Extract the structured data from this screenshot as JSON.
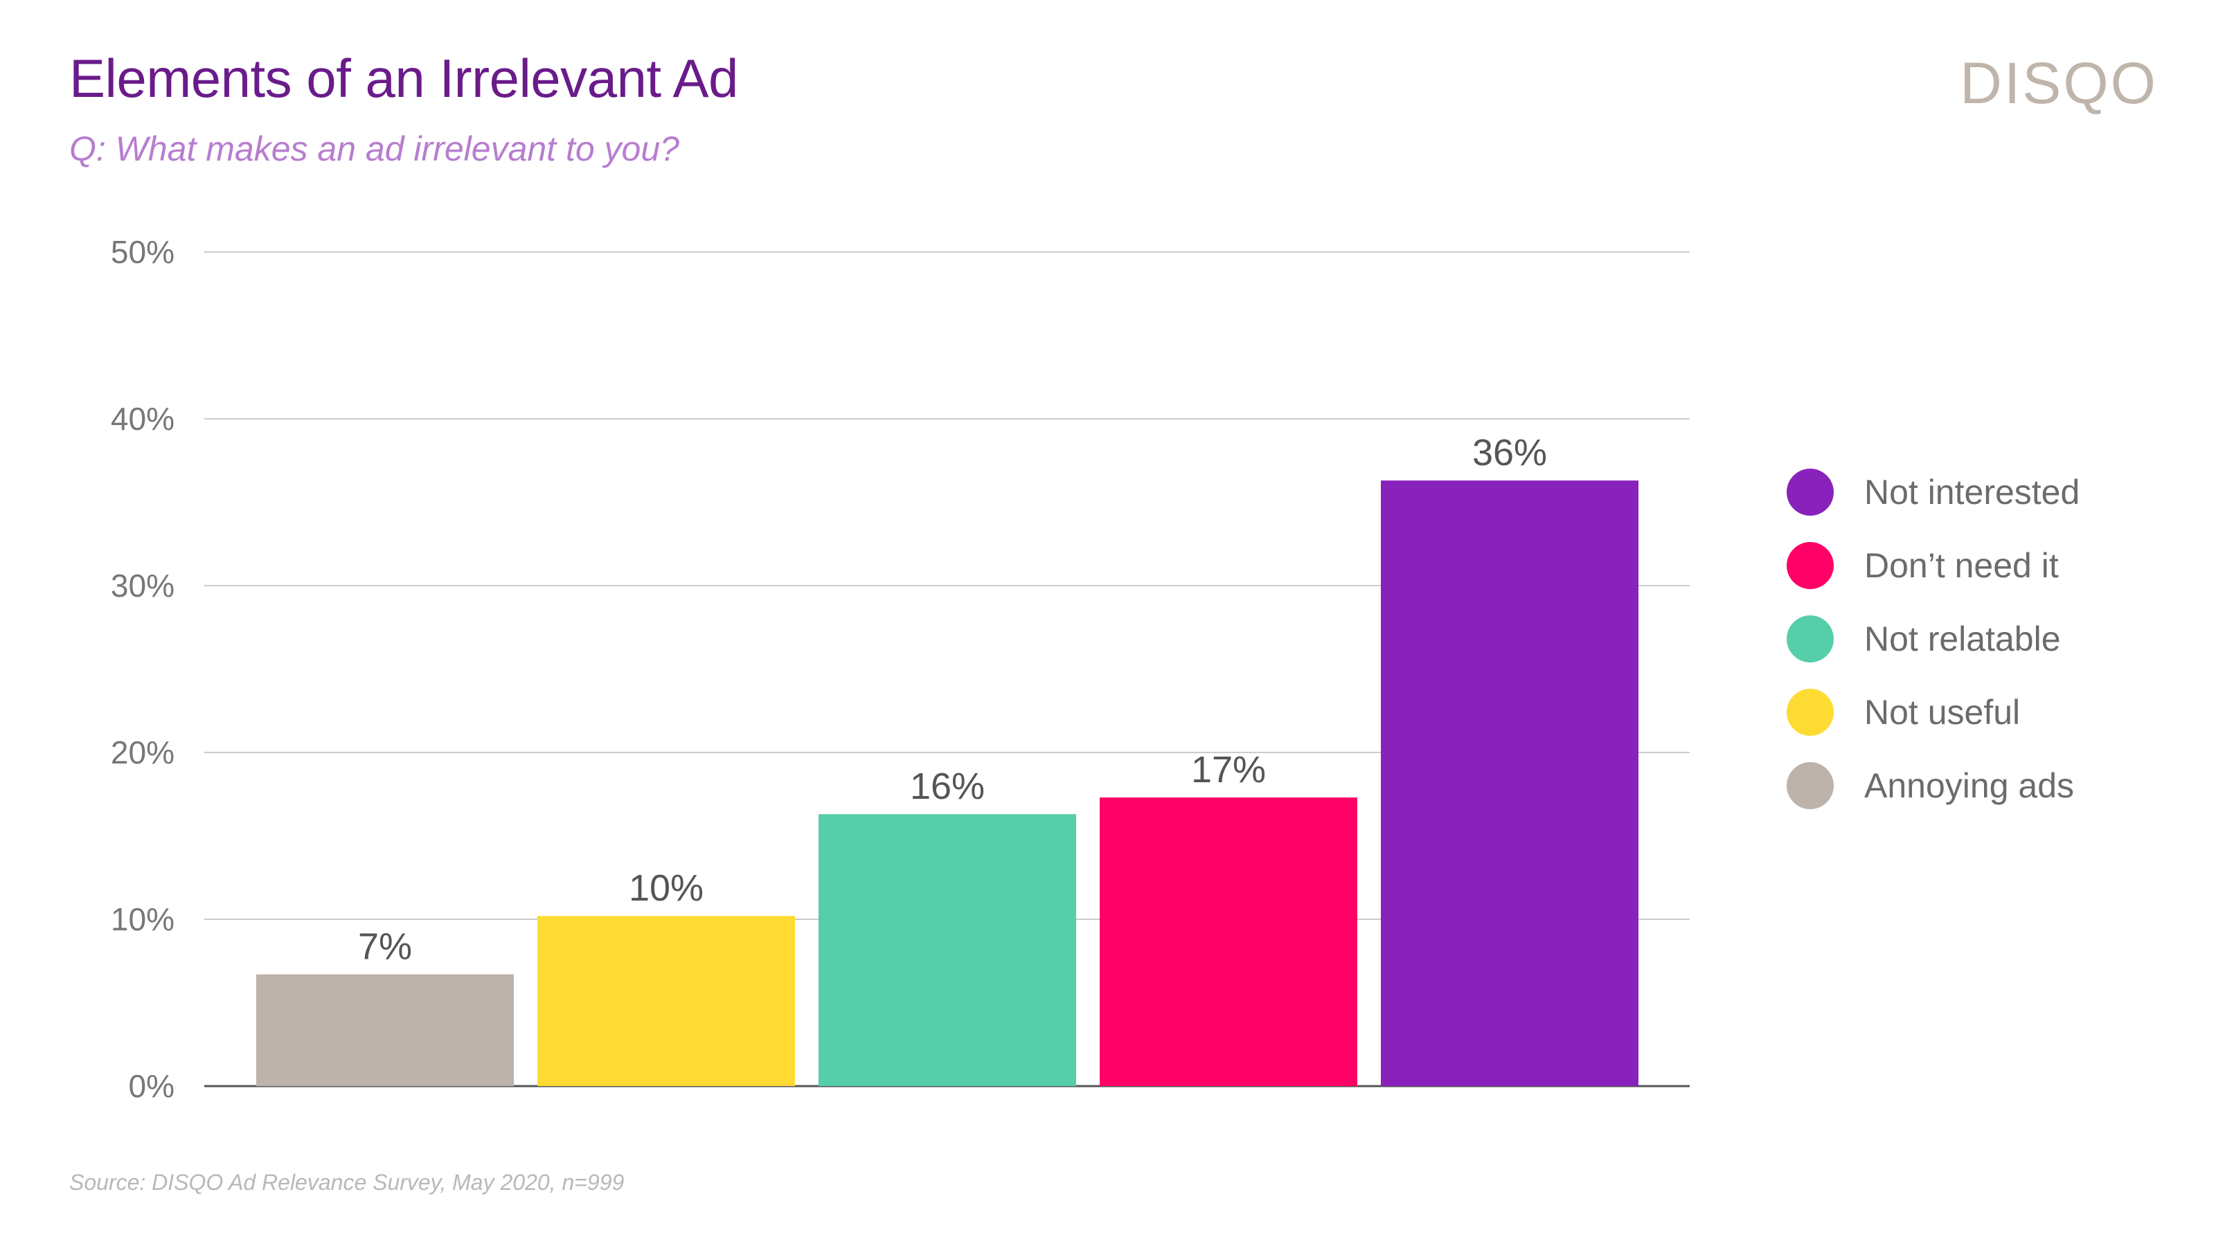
{
  "header": {
    "title": "Elements of an Irrelevant Ad",
    "subtitle": "Q: What makes an ad irrelevant to you?",
    "logo": "DISQO"
  },
  "footer": {
    "source": "Source: DISQO Ad Relevance Survey, May 2020, n=999"
  },
  "chart_data": {
    "type": "bar",
    "title": "Elements of an Irrelevant Ad",
    "xlabel": "",
    "ylabel": "",
    "ylim": [
      0,
      50
    ],
    "yticks": [
      0,
      10,
      20,
      30,
      40,
      50
    ],
    "ytick_labels": [
      "0%",
      "10%",
      "20%",
      "30%",
      "40%",
      "50%"
    ],
    "grid": true,
    "legend_position": "right",
    "categories": [
      "Annoying ads",
      "Not useful",
      "Not relatable",
      "Don’t need it",
      "Not interested"
    ],
    "values": [
      6.7,
      10.2,
      16.3,
      17.3,
      36.3
    ],
    "value_labels": [
      "7%",
      "10%",
      "16%",
      "17%",
      "36%"
    ],
    "colors": [
      "#bdb3aa",
      "#fedb33",
      "#55ceaa",
      "#ff0066",
      "#8921bb"
    ],
    "legend": [
      {
        "label": "Not interested",
        "color": "#8921bb"
      },
      {
        "label": "Don’t need it",
        "color": "#ff0066"
      },
      {
        "label": "Not relatable",
        "color": "#55ceaa"
      },
      {
        "label": "Not useful",
        "color": "#fedb33"
      },
      {
        "label": "Annoying ads",
        "color": "#bdb3aa"
      }
    ],
    "grid_color": "#cccccc",
    "axis_color": "#555555"
  }
}
